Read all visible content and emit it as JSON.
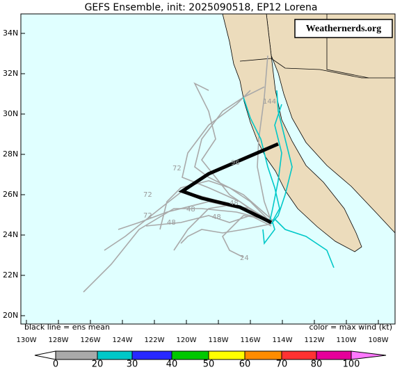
{
  "title": "GEFS Ensemble, init: 2025090518, EP12 Lorena",
  "watermark": "Weathernerds.org",
  "lat_labels": [
    "34N",
    "32N",
    "30N",
    "28N",
    "26N",
    "24N",
    "22N",
    "20N"
  ],
  "lon_labels": [
    "130W",
    "128W",
    "126W",
    "124W",
    "122W",
    "120W",
    "118W",
    "116W",
    "114W",
    "112W",
    "110W",
    "108W"
  ],
  "legend_left": "black line = ens mean",
  "legend_right": "color = max wind (kt)",
  "track_labels": [
    "144",
    "96",
    "72",
    "72",
    "72",
    "48",
    "48",
    "48",
    "48",
    "24"
  ],
  "colorbar": {
    "ticks": [
      0,
      20,
      30,
      40,
      50,
      60,
      70,
      80,
      100
    ],
    "colors": [
      "#ffffff",
      "#a9a9a9",
      "#00c8c8",
      "#2828ff",
      "#00c800",
      "#ffff00",
      "#ff8c00",
      "#ff3232",
      "#e6009a",
      "#ff78ff"
    ]
  }
}
